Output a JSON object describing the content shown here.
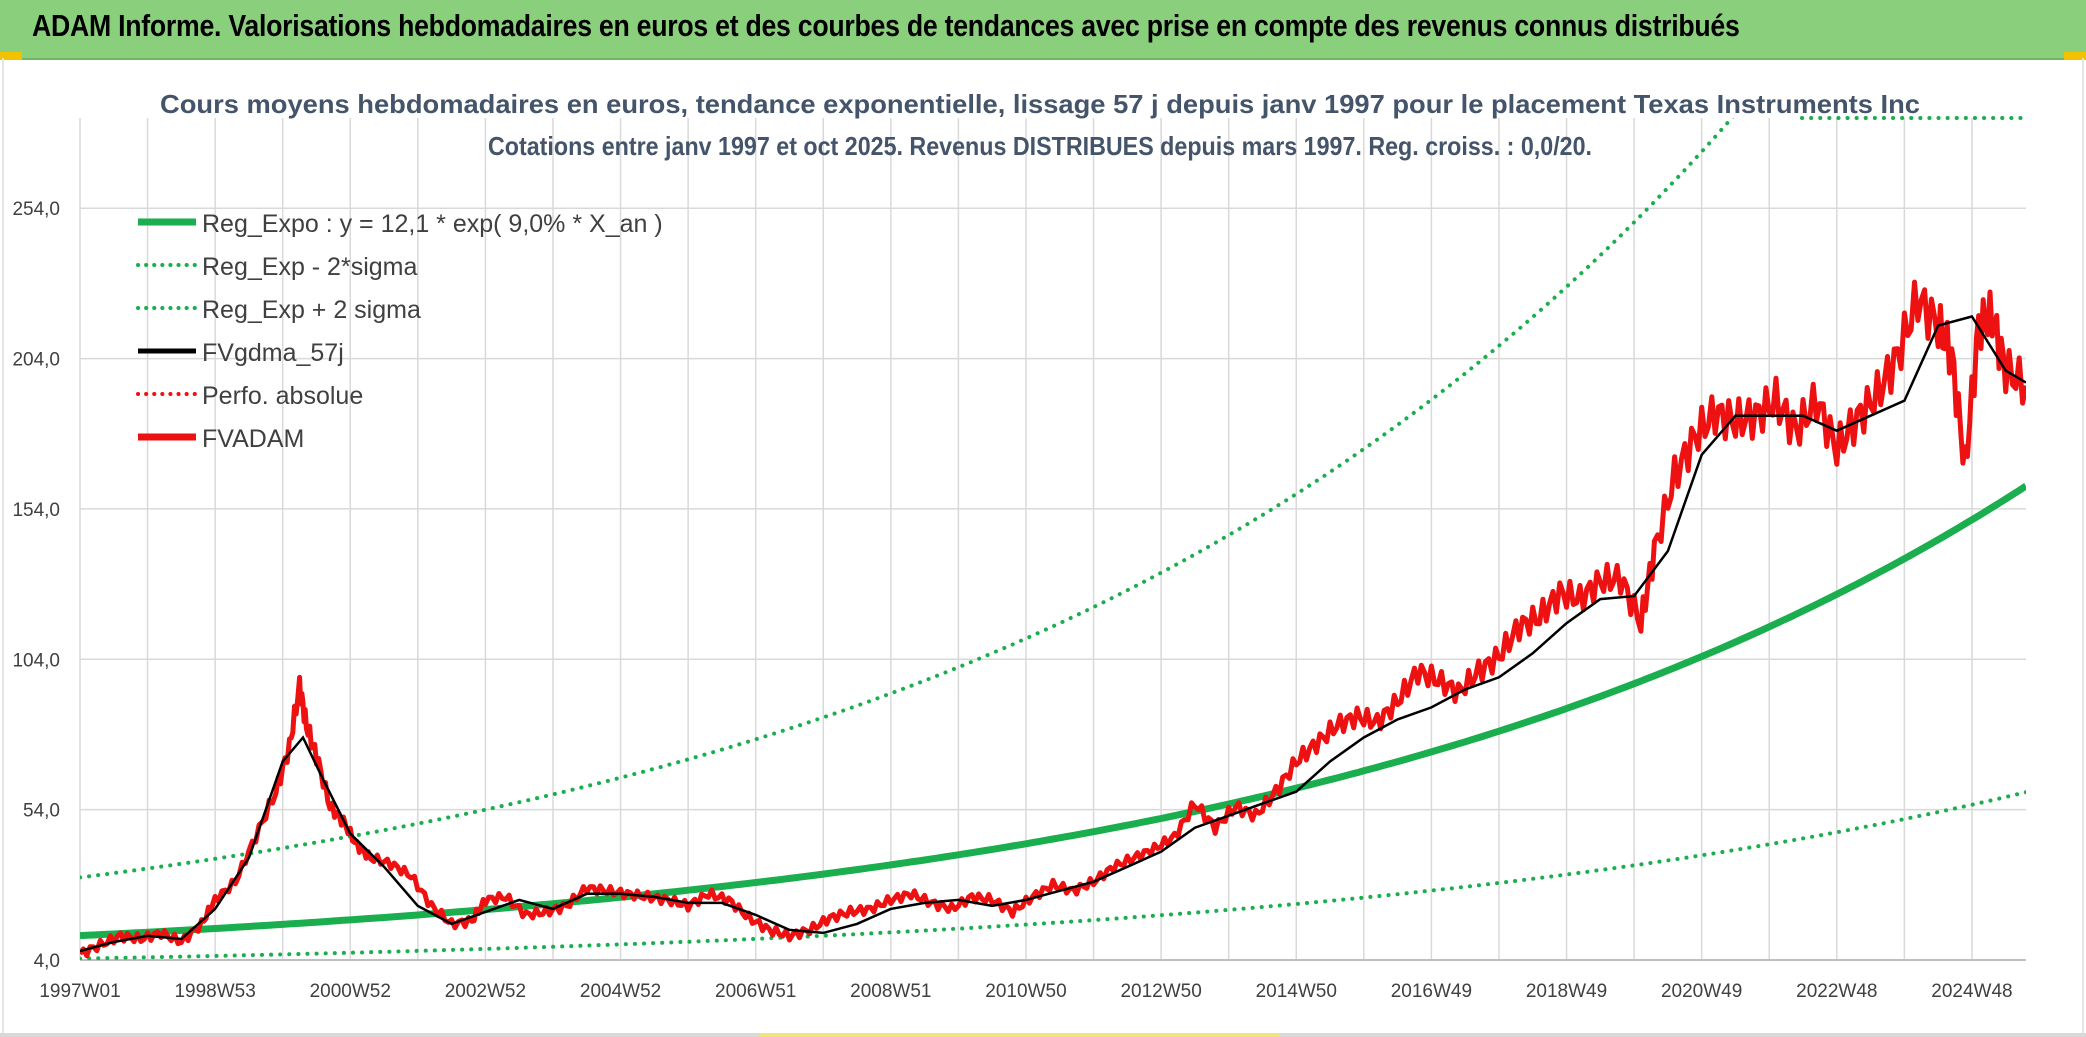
{
  "header": {
    "title": "ADAM Informe. Valorisations hebdomadaires en euros et des courbes de tendances avec prise en compte des revenus connus distribués"
  },
  "colors": {
    "green": "#1aae4e",
    "red": "#ee1111",
    "black": "#000000",
    "grid": "#d9d9d9",
    "title_text": "#44546a",
    "axis_text": "#404040"
  },
  "chart_data": {
    "type": "line",
    "title_line1": "Cours moyens hebdomadaires en euros, tendance exponentielle, lissage 57 j depuis janv 1997 pour le placement Texas Instruments Inc",
    "title_line2": "Cotations entre janv 1997 et oct 2025. Revenus DISTRIBUES depuis mars 1997. Reg. croiss. : 0,0/20.",
    "xlabel": "",
    "ylabel": "",
    "x_range": [
      1997.0,
      2025.8
    ],
    "ylim": [
      4,
      284
    ],
    "y_ticks": [
      4,
      54,
      104,
      154,
      204,
      254
    ],
    "y_tick_labels": [
      "4,0",
      "54,0",
      "104,0",
      "154,0",
      "204,0",
      "254,0"
    ],
    "x_ticks": [
      {
        "x": 1997.0,
        "label": "1997W01"
      },
      {
        "x": 1999.0,
        "label": "1998W53"
      },
      {
        "x": 2001.0,
        "label": "2000W52"
      },
      {
        "x": 2003.0,
        "label": "2002W52"
      },
      {
        "x": 2005.0,
        "label": "2004W52"
      },
      {
        "x": 2007.0,
        "label": "2006W51"
      },
      {
        "x": 2009.0,
        "label": "2008W51"
      },
      {
        "x": 2011.0,
        "label": "2010W50"
      },
      {
        "x": 2013.0,
        "label": "2012W50"
      },
      {
        "x": 2015.0,
        "label": "2014W50"
      },
      {
        "x": 2017.0,
        "label": "2016W49"
      },
      {
        "x": 2019.0,
        "label": "2018W49"
      },
      {
        "x": 2021.0,
        "label": "2020W49"
      },
      {
        "x": 2023.0,
        "label": "2022W48"
      },
      {
        "x": 2025.0,
        "label": "2024W48"
      }
    ],
    "legend": [
      {
        "label": "Reg_Expo : y = 12,1 * exp( 9,0% *  X_an )",
        "color": "#1aae4e",
        "style": "solid",
        "weight": "thick"
      },
      {
        "label": "Reg_Exp - 2*sigma",
        "color": "#1aae4e",
        "style": "dotted",
        "weight": "normal"
      },
      {
        "label": "Reg_Exp + 2 sigma",
        "color": "#1aae4e",
        "style": "dotted",
        "weight": "normal"
      },
      {
        "label": "FVgdma_57j",
        "color": "#000000",
        "style": "solid",
        "weight": "normal"
      },
      {
        "label": "Perfo. absolue",
        "color": "#ee1111",
        "style": "dotted",
        "weight": "normal"
      },
      {
        "label": "FVADAM",
        "color": "#ee1111",
        "style": "solid",
        "weight": "thick"
      }
    ],
    "legend_position": "top-left",
    "regression": {
      "a": 12.1,
      "rate": 0.09,
      "start_year": 1997.0,
      "lower_factor": 0.37,
      "upper_factor": 2.6
    },
    "series_fvadam": {
      "name": "FVADAM",
      "x": [
        1997.0,
        1997.3,
        1997.6,
        1997.9,
        1998.2,
        1998.5,
        1998.8,
        1999.0,
        1999.3,
        1999.6,
        1999.9,
        2000.1,
        2000.25,
        2000.35,
        2000.5,
        2000.7,
        2000.9,
        2001.1,
        2001.3,
        2001.6,
        2001.9,
        2002.2,
        2002.5,
        2002.8,
        2003.0,
        2003.3,
        2003.6,
        2003.9,
        2004.2,
        2004.5,
        2004.8,
        2005.1,
        2005.4,
        2005.7,
        2006.0,
        2006.3,
        2006.6,
        2006.9,
        2007.2,
        2007.5,
        2007.8,
        2008.1,
        2008.4,
        2008.7,
        2009.0,
        2009.3,
        2009.6,
        2009.9,
        2010.2,
        2010.5,
        2010.8,
        2011.1,
        2011.4,
        2011.7,
        2012.0,
        2012.3,
        2012.6,
        2012.9,
        2013.2,
        2013.5,
        2013.8,
        2014.1,
        2014.4,
        2014.7,
        2015.0,
        2015.3,
        2015.6,
        2015.9,
        2016.2,
        2016.5,
        2016.8,
        2017.1,
        2017.4,
        2017.7,
        2018.0,
        2018.3,
        2018.6,
        2018.9,
        2019.2,
        2019.5,
        2019.8,
        2020.1,
        2020.3,
        2020.6,
        2020.9,
        2021.2,
        2021.5,
        2021.8,
        2022.1,
        2022.4,
        2022.7,
        2023.0,
        2023.3,
        2023.6,
        2023.9,
        2024.2,
        2024.5,
        2024.7,
        2024.9,
        2025.1,
        2025.3,
        2025.5,
        2025.8
      ],
      "values": [
        6,
        9,
        12,
        11,
        13,
        10,
        16,
        24,
        30,
        45,
        60,
        75,
        95,
        82,
        72,
        55,
        50,
        42,
        38,
        36,
        32,
        22,
        16,
        17,
        24,
        25,
        19,
        20,
        22,
        28,
        27,
        26,
        25,
        24,
        22,
        26,
        24,
        18,
        14,
        12,
        14,
        18,
        20,
        21,
        24,
        26,
        23,
        21,
        25,
        24,
        20,
        25,
        29,
        27,
        30,
        35,
        38,
        41,
        45,
        56,
        48,
        55,
        52,
        60,
        70,
        76,
        82,
        85,
        83,
        90,
        100,
        97,
        93,
        100,
        105,
        115,
        118,
        126,
        124,
        130,
        131,
        116,
        140,
        165,
        178,
        186,
        183,
        185,
        190,
        180,
        190,
        174,
        184,
        192,
        205,
        224,
        215,
        205,
        168,
        215,
        218,
        200,
        195
      ]
    },
    "series_fvgdma": {
      "name": "FVgdma_57j",
      "x": [
        1997.0,
        1997.5,
        1998.0,
        1998.5,
        1999.0,
        1999.5,
        2000.0,
        2000.3,
        2000.6,
        2001.0,
        2001.5,
        2002.0,
        2002.5,
        2003.0,
        2003.5,
        2004.0,
        2004.5,
        2005.0,
        2005.5,
        2006.0,
        2006.5,
        2007.0,
        2007.5,
        2008.0,
        2008.5,
        2009.0,
        2009.5,
        2010.0,
        2010.5,
        2011.0,
        2011.5,
        2012.0,
        2012.5,
        2013.0,
        2013.5,
        2014.0,
        2014.5,
        2015.0,
        2015.5,
        2016.0,
        2016.5,
        2017.0,
        2017.5,
        2018.0,
        2018.5,
        2019.0,
        2019.5,
        2020.0,
        2020.5,
        2021.0,
        2021.5,
        2022.0,
        2022.5,
        2023.0,
        2023.5,
        2024.0,
        2024.5,
        2025.0,
        2025.5,
        2025.8
      ],
      "values": [
        7,
        10,
        12,
        11,
        21,
        38,
        70,
        78,
        64,
        46,
        35,
        22,
        16,
        20,
        24,
        21,
        26,
        26,
        25,
        23,
        23,
        19,
        14,
        13,
        16,
        21,
        23,
        24,
        22,
        24,
        27,
        30,
        35,
        40,
        48,
        52,
        56,
        60,
        70,
        78,
        84,
        88,
        94,
        98,
        106,
        116,
        124,
        125,
        140,
        172,
        185,
        185,
        185,
        180,
        185,
        190,
        215,
        218,
        200,
        196
      ]
    }
  }
}
